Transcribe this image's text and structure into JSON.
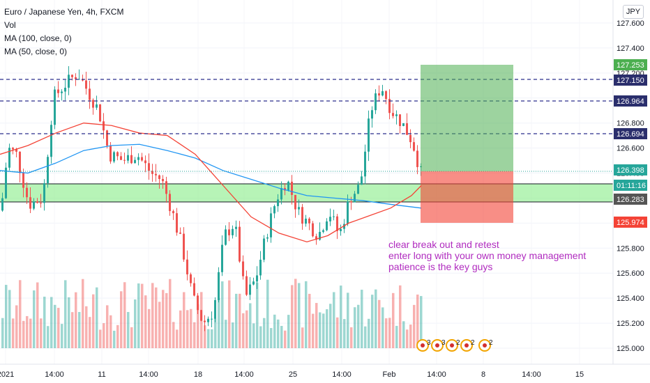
{
  "legend": {
    "symbol": "Euro / Japanese Yen, 4h, FXCM",
    "vol": "Vol",
    "ma100": "MA (100, close, 0)",
    "ma50": "MA (50, close, 0)"
  },
  "currency": "JPY",
  "annotation": {
    "line1": "clear break out and retest",
    "line2": "enter long with your own money management",
    "line3": "patience is the key guys"
  },
  "price_axis": {
    "ticks": [
      "127.600",
      "127.400",
      "127.200",
      "127.000",
      "126.800",
      "126.600",
      "126.400",
      "126.200",
      "126.000",
      "125.800",
      "125.600",
      "125.400",
      "125.200",
      "125.000"
    ],
    "labels": {
      "target": "127.253",
      "level_1": "127.150",
      "level_2": "126.964",
      "level_3": "126.694",
      "last_price": "126.398",
      "countdown": "01:11:16",
      "support": "126.283",
      "stop": "125.974"
    }
  },
  "time_axis": [
    "2021",
    "14:00",
    "11",
    "14:00",
    "18",
    "14:00",
    "25",
    "14:00",
    "Feb",
    "14:00",
    "8",
    "14:00",
    "15"
  ],
  "event_badges": [
    "3",
    "3",
    "2",
    "2",
    "2"
  ],
  "colors": {
    "up": "#26a69a",
    "down": "#ef5350",
    "ma100": "#2196f3",
    "ma50": "#f44336",
    "dashed": "#2a2e8c",
    "zone": "#90ee90",
    "profit": "#4caf50",
    "loss": "#f44336",
    "annotation": "#b02bbf"
  }
}
